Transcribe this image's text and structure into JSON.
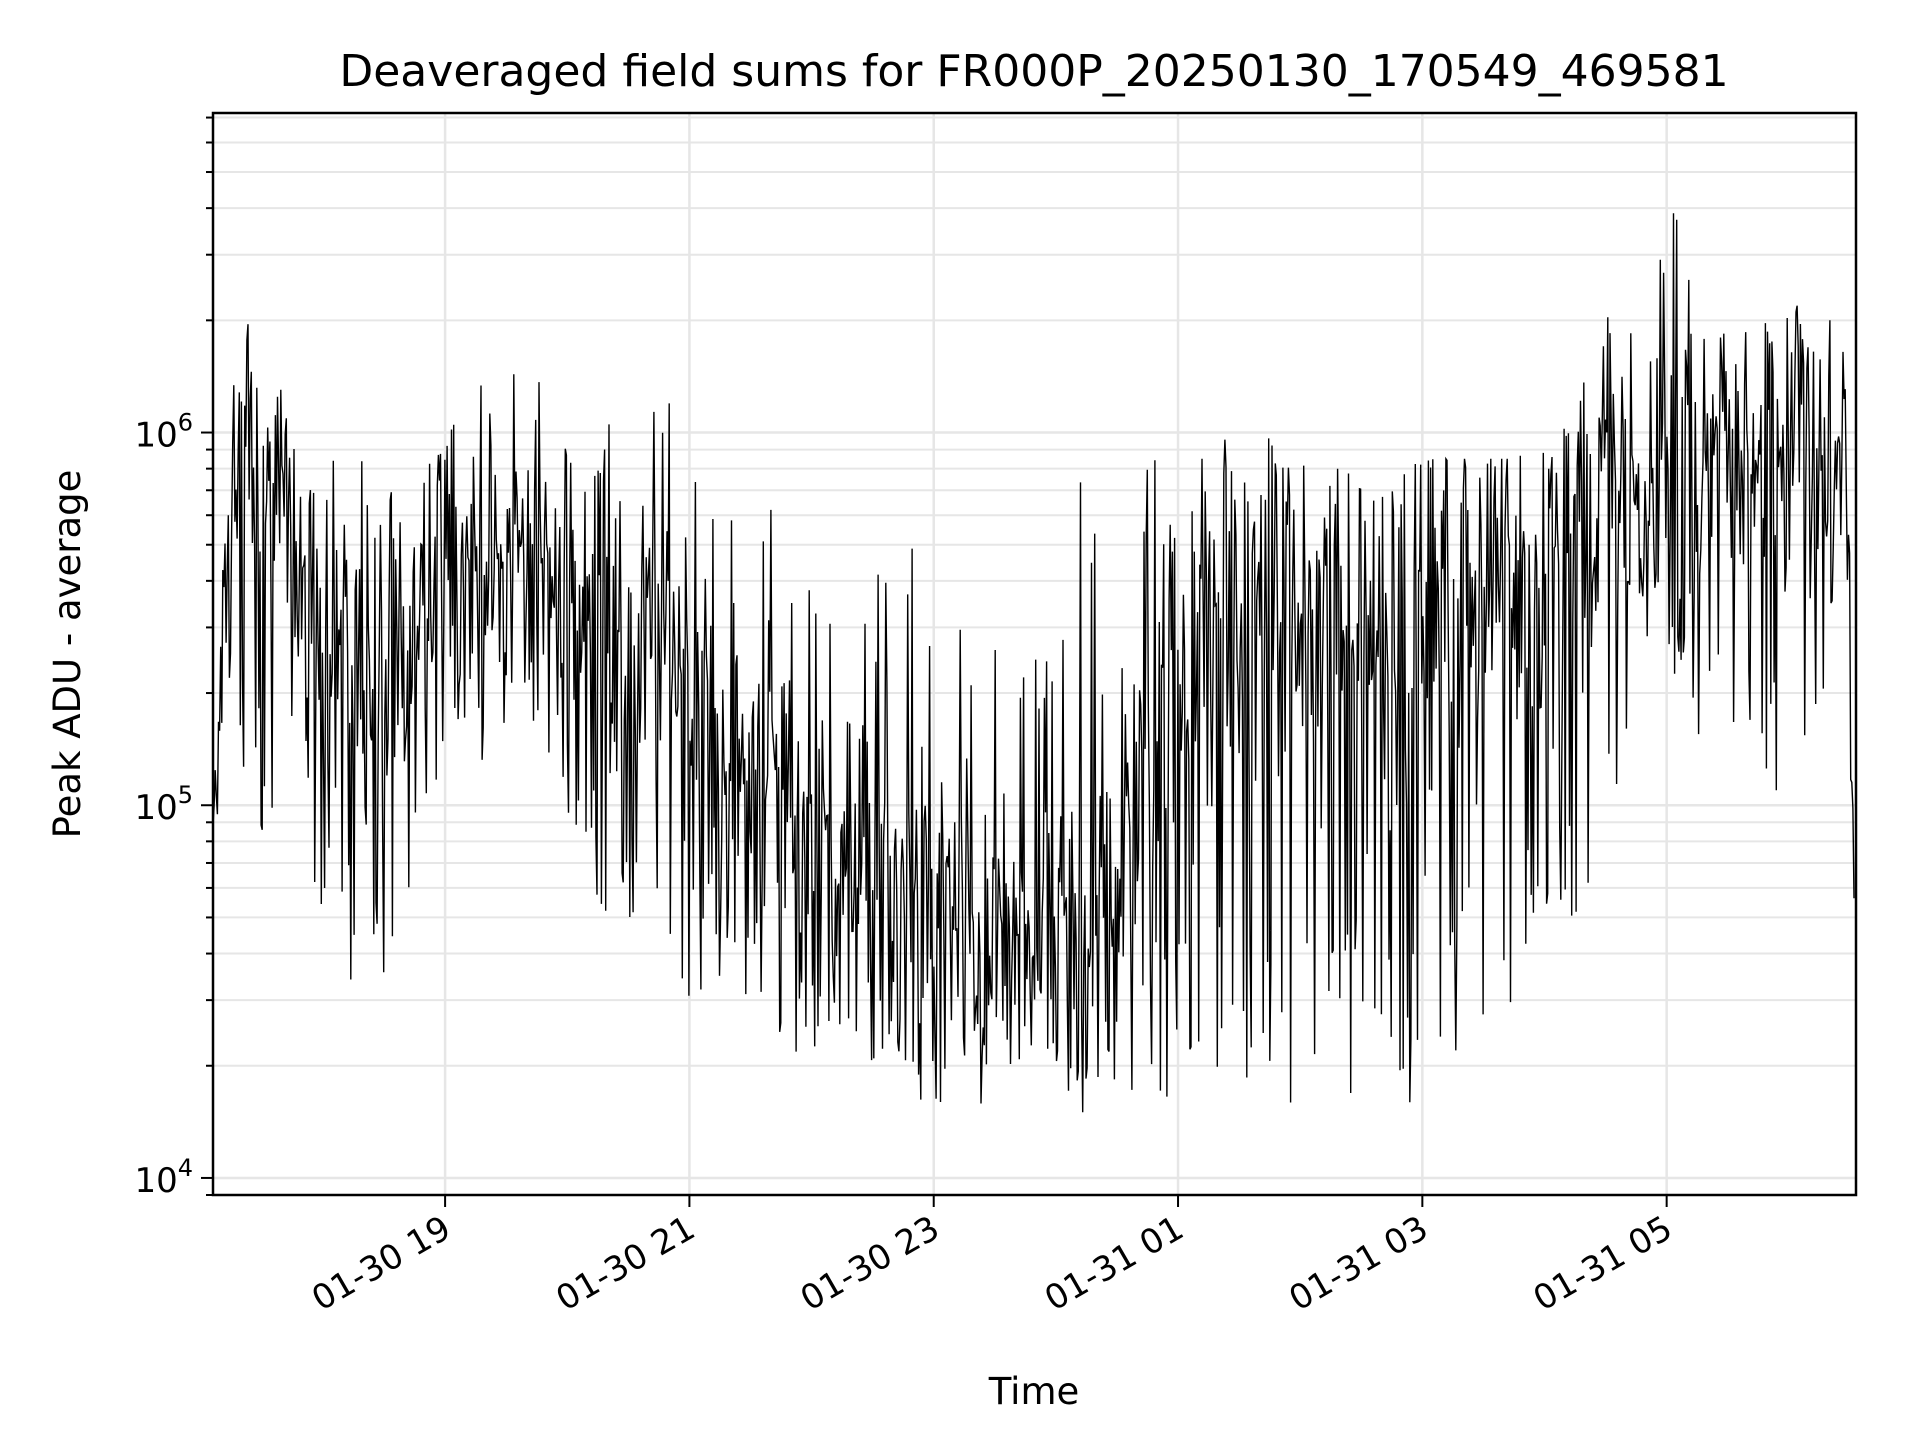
{
  "chart_data": {
    "type": "line",
    "title": "Deaveraged field sums for FR000P_20250130_170549_469581",
    "xlabel": "Time",
    "ylabel": "Peak ADU - average",
    "x_tick_labels": [
      "01-30 19",
      "01-30 21",
      "01-30 23",
      "01-31 01",
      "01-31 03",
      "01-31 05"
    ],
    "x_tick_hours": [
      19,
      21,
      23,
      25,
      27,
      29
    ],
    "y_tick_labels": [
      {
        "base": "10",
        "exp": "4",
        "value": 10000
      },
      {
        "base": "10",
        "exp": "5",
        "value": 100000
      },
      {
        "base": "10",
        "exp": "6",
        "value": 1000000
      }
    ],
    "y_scale": "log",
    "xlim": [
      "2025-01-30 17:06",
      "2025-01-31 06:33"
    ],
    "ylim": [
      9000,
      7200000
    ],
    "grid": true,
    "line_color": "#000000",
    "grid_color": "#e6e6e6",
    "series": [
      {
        "x_start": "2025-01-30 17:06",
        "x_end": "2025-01-31 06:32",
        "envelope": {
          "hours": [
            17.1,
            17.2,
            17.4,
            17.6,
            17.8,
            18.0,
            18.3,
            18.6,
            18.9,
            19.1,
            19.3,
            19.6,
            19.9,
            20.1,
            20.4,
            20.7,
            21.0,
            21.3,
            21.6,
            21.9,
            22.2,
            22.5,
            22.8,
            23.1,
            23.4,
            23.7,
            24.0,
            24.2,
            24.5,
            24.8,
            25.0,
            25.3,
            25.6,
            25.9,
            26.2,
            26.5,
            26.8,
            27.1,
            27.4,
            27.7,
            28.0,
            28.3,
            28.6,
            28.9,
            29.0,
            29.3,
            29.6,
            29.9,
            30.2,
            30.45,
            30.55
          ],
          "center": [
            80000,
            450000,
            900000,
            600000,
            350000,
            300000,
            250000,
            200000,
            350000,
            450000,
            450000,
            550000,
            400000,
            350000,
            250000,
            300000,
            250000,
            150000,
            120000,
            100000,
            80000,
            60000,
            60000,
            50000,
            40000,
            40000,
            35000,
            45000,
            70000,
            150000,
            250000,
            300000,
            350000,
            300000,
            250000,
            300000,
            250000,
            300000,
            350000,
            450000,
            500000,
            550000,
            700000,
            600000,
            600000,
            800000,
            850000,
            900000,
            800000,
            700000,
            70000
          ],
          "high": [
            130000,
            1400000,
            2000000,
            1500000,
            900000,
            800000,
            1000000,
            700000,
            900000,
            1100000,
            1400000,
            1800000,
            1200000,
            900000,
            1200000,
            1300000,
            1100000,
            750000,
            700000,
            500000,
            400000,
            420000,
            500000,
            400000,
            350000,
            300000,
            280000,
            800000,
            850000,
            850000,
            850000,
            850000,
            1300000,
            850000,
            800000,
            800000,
            800000,
            850000,
            850000,
            850000,
            900000,
            1300000,
            2500000,
            1700000,
            6000000,
            1800000,
            1900000,
            2400000,
            2200000,
            2000000,
            100000
          ],
          "low": [
            60000,
            120000,
            100000,
            60000,
            70000,
            50000,
            30000,
            25000,
            80000,
            150000,
            120000,
            200000,
            120000,
            70000,
            45000,
            45000,
            28000,
            30000,
            22000,
            20000,
            18000,
            18000,
            16000,
            15000,
            14000,
            15000,
            16000,
            15000,
            15000,
            15000,
            14000,
            15000,
            16000,
            15000,
            15000,
            16000,
            15000,
            18000,
            22000,
            25000,
            30000,
            40000,
            100000,
            150000,
            200000,
            120000,
            150000,
            100000,
            150000,
            300000,
            40000
          ]
        }
      }
    ]
  }
}
